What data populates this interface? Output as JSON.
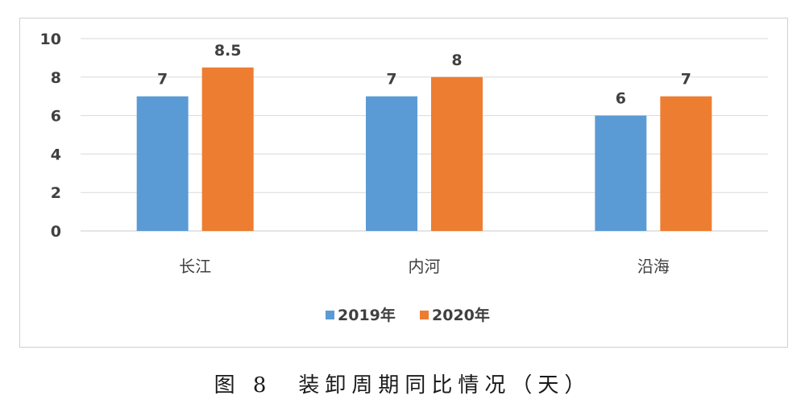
{
  "chart_data": {
    "type": "bar",
    "categories": [
      "长江",
      "内河",
      "沿海"
    ],
    "series": [
      {
        "name": "2019年",
        "values": [
          7,
          7,
          6
        ],
        "color": "#5b9bd5"
      },
      {
        "name": "2020年",
        "values": [
          8.5,
          8,
          7
        ],
        "color": "#ed7d31"
      }
    ],
    "data_labels": [
      [
        "7",
        "7",
        "6"
      ],
      [
        "8.5",
        "8",
        "7"
      ]
    ],
    "yticks": [
      "0",
      "2",
      "4",
      "6",
      "8",
      "10"
    ],
    "ylim": [
      0,
      10
    ],
    "grid": true,
    "legend_position": "bottom"
  },
  "caption": "图 8　装卸周期同比情况（天）"
}
